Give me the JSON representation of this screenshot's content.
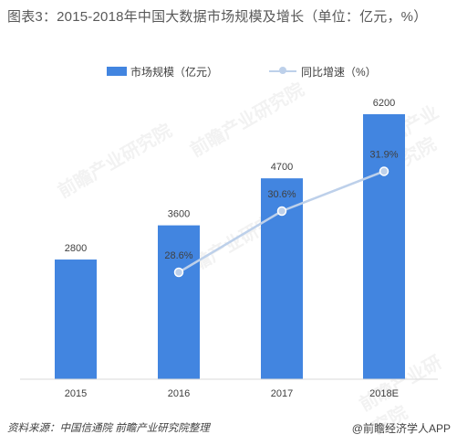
{
  "title": "图表3：2015-2018年中国大数据市场规模及增长（单位：亿元，%）",
  "source": "资料来源：中国信通院 前瞻产业研究院整理",
  "brand": "@前瞻经济学人APP",
  "watermark": "前瞻产业研究院",
  "colors": {
    "bar": "#4285e0",
    "line": "#bdd0ea",
    "marker": "#bdd0ea",
    "marker_stroke": "#ffffff",
    "axis": "#d9d9d9",
    "text": "#404040"
  },
  "chart_data": {
    "type": "bar",
    "categories": [
      "2015",
      "2016",
      "2017",
      "2018E"
    ],
    "series": [
      {
        "name": "市场规模（亿元）",
        "type": "bar",
        "values": [
          2800,
          3600,
          4700,
          6200
        ],
        "labels": [
          "2800",
          "3600",
          "4700",
          "6200"
        ]
      },
      {
        "name": "同比增速（%）",
        "type": "line",
        "values": [
          null,
          28.6,
          30.6,
          31.9
        ],
        "labels": [
          "",
          "28.6%",
          "30.6%",
          "31.9%"
        ]
      }
    ],
    "legend_position": "top-center",
    "grid": false
  }
}
